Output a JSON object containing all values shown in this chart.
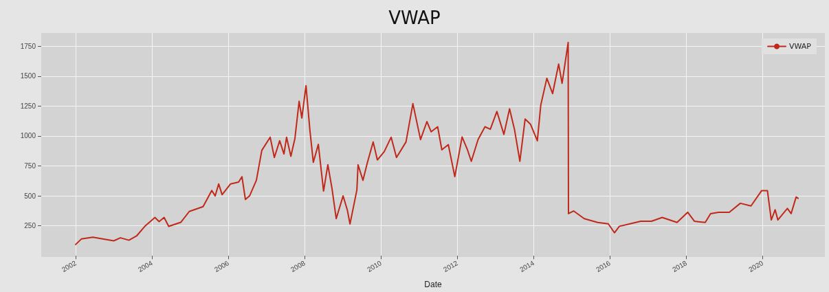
{
  "chart_data": {
    "type": "line",
    "title": "VWAP",
    "xlabel": "Date",
    "x": [
      "2002-01-01",
      "2002-02-25",
      "2002-06-15",
      "2003-01-01",
      "2003-03-06",
      "2003-05-26",
      "2003-08-07",
      "2003-10-30",
      "2004-01-30",
      "2004-03-10",
      "2004-04-27",
      "2004-06-10",
      "2004-10-05",
      "2004-12-24",
      "2005-05-05",
      "2005-07-27",
      "2005-08-29",
      "2005-10-01",
      "2005-11-03",
      "2006-01-23",
      "2006-04-10",
      "2006-05-12",
      "2006-06-14",
      "2006-07-24",
      "2006-09-27",
      "2006-11-18",
      "2007-02-06",
      "2007-03-18",
      "2007-05-08",
      "2007-06-18",
      "2007-07-13",
      "2007-08-23",
      "2007-10-01",
      "2007-11-10",
      "2007-12-06",
      "2008-01-15",
      "2008-02-21",
      "2008-03-25",
      "2008-05-12",
      "2008-07-01",
      "2008-08-11",
      "2008-09-20",
      "2008-10-30",
      "2009-01-04",
      "2009-02-14",
      "2009-03-11",
      "2009-05-16",
      "2009-05-27",
      "2009-07-13",
      "2009-08-25",
      "2009-10-19",
      "2009-11-28",
      "2010-02-02",
      "2010-04-09",
      "2010-05-30",
      "2010-08-29",
      "2010-11-03",
      "2011-01-15",
      "2011-03-17",
      "2011-04-27",
      "2011-06-28",
      "2011-08-07",
      "2011-10-08",
      "2011-12-09",
      "2012-02-17",
      "2012-04-08",
      "2012-05-15",
      "2012-07-19",
      "2012-09-23",
      "2012-11-13",
      "2013-01-15",
      "2013-03-23",
      "2013-05-16",
      "2013-07-02",
      "2013-08-23",
      "2013-10-12",
      "2013-12-02",
      "2014-02-06",
      "2014-03-11",
      "2014-05-08",
      "2014-07-02",
      "2014-08-29",
      "2014-10-01",
      "2014-11-28",
      "2014-12-01",
      "2015-01-19",
      "2015-05-01",
      "2015-09-06",
      "2015-12-17",
      "2016-02-14",
      "2016-04-01",
      "2016-07-12",
      "2016-10-23",
      "2017-02-03",
      "2017-05-16",
      "2017-10-05",
      "2018-01-15",
      "2018-03-21",
      "2018-07-02",
      "2018-08-22",
      "2018-11-07",
      "2019-02-17",
      "2019-06-03",
      "2019-09-13",
      "2019-12-24",
      "2020-02-17",
      "2020-03-25",
      "2020-05-01",
      "2020-05-27",
      "2020-08-26",
      "2020-10-01",
      "2020-11-18",
      "2020-12-06"
    ],
    "series": [
      {
        "name": "VWAP",
        "color": "#c0281a",
        "values": [
          94,
          140,
          155,
          125,
          150,
          130,
          165,
          250,
          320,
          285,
          320,
          245,
          280,
          370,
          410,
          545,
          500,
          600,
          510,
          600,
          615,
          660,
          470,
          500,
          630,
          880,
          990,
          820,
          960,
          850,
          990,
          830,
          980,
          1290,
          1150,
          1420,
          1050,
          780,
          930,
          540,
          760,
          560,
          310,
          500,
          380,
          265,
          550,
          760,
          630,
          780,
          950,
          800,
          870,
          990,
          820,
          950,
          1270,
          970,
          1120,
          1035,
          1077,
          885,
          928,
          661,
          992,
          885,
          789,
          971,
          1077,
          1056,
          1205,
          1013,
          1227,
          1056,
          789,
          1141,
          1099,
          960,
          1258,
          1482,
          1354,
          1600,
          1440,
          1781,
          352,
          374,
          310,
          278,
          267,
          192,
          246,
          267,
          288,
          288,
          320,
          278,
          363,
          288,
          278,
          352,
          363,
          363,
          438,
          416,
          544,
          544,
          299,
          384,
          299,
          395,
          352,
          491,
          480
        ]
      }
    ],
    "xlim": [
      "2001-02-06",
      "2021-08-20"
    ],
    "xticks": [
      "2002",
      "2004",
      "2006",
      "2008",
      "2010",
      "2012",
      "2014",
      "2016",
      "2018",
      "2020"
    ],
    "ylim": [
      -10,
      1860
    ],
    "yticks": [
      250,
      500,
      750,
      1000,
      1250,
      1500,
      1750
    ],
    "grid": true,
    "legend": "top right",
    "marker": "none",
    "line_style": "solid"
  }
}
